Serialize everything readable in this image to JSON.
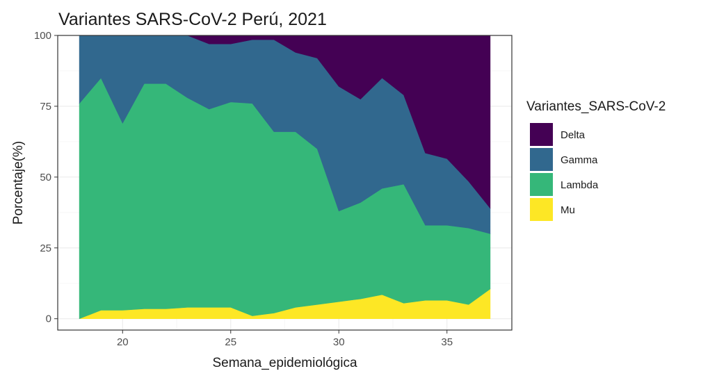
{
  "chart_data": {
    "type": "area",
    "title": "Variantes SARS-CoV-2 Perú, 2021",
    "xlabel": "Semana_epidemiológica",
    "ylabel": "Porcentaje(%)",
    "xlim": [
      17,
      38
    ],
    "ylim": [
      -4,
      100
    ],
    "x_ticks": [
      20,
      25,
      30,
      35
    ],
    "y_ticks": [
      0,
      25,
      50,
      75,
      100
    ],
    "x": [
      18,
      19,
      20,
      21,
      22,
      23,
      24,
      25,
      26,
      27,
      28,
      29,
      30,
      31,
      32,
      33,
      34,
      35,
      36,
      37
    ],
    "stack_note": "upper boundary of each cumulative layer, bottom-to-top order Mu, Lambda, Gamma, Delta",
    "legend_title": "Variantes_SARS-CoV-2",
    "legend_position": "right",
    "series": [
      {
        "name": "Mu",
        "color": "#FDE725",
        "cumulative": [
          0,
          3,
          3,
          3.5,
          3.5,
          4,
          4,
          4,
          1,
          2,
          4,
          5,
          6,
          7,
          8.5,
          5.5,
          6.5,
          6.5,
          5,
          10.5
        ]
      },
      {
        "name": "Lambda",
        "color": "#35B779",
        "cumulative": [
          76,
          85,
          69,
          83,
          83,
          78,
          74,
          76.5,
          76,
          66,
          66,
          60,
          38,
          41,
          46,
          47.5,
          33,
          33,
          32,
          30
        ]
      },
      {
        "name": "Gamma",
        "color": "#31688E",
        "cumulative": [
          100,
          100,
          100,
          100,
          100,
          100,
          97,
          97,
          98.5,
          98.5,
          94,
          92,
          82,
          77.5,
          85,
          79,
          58.5,
          56.5,
          48.5,
          39
        ]
      },
      {
        "name": "Delta",
        "color": "#440154",
        "cumulative": [
          100,
          100,
          100,
          100,
          100,
          100,
          100,
          100,
          100,
          100,
          100,
          100,
          100,
          100,
          100,
          100,
          100,
          100,
          100,
          100
        ]
      }
    ],
    "legend_order": [
      "Delta",
      "Gamma",
      "Lambda",
      "Mu"
    ],
    "grid": true,
    "theme": "bw"
  }
}
